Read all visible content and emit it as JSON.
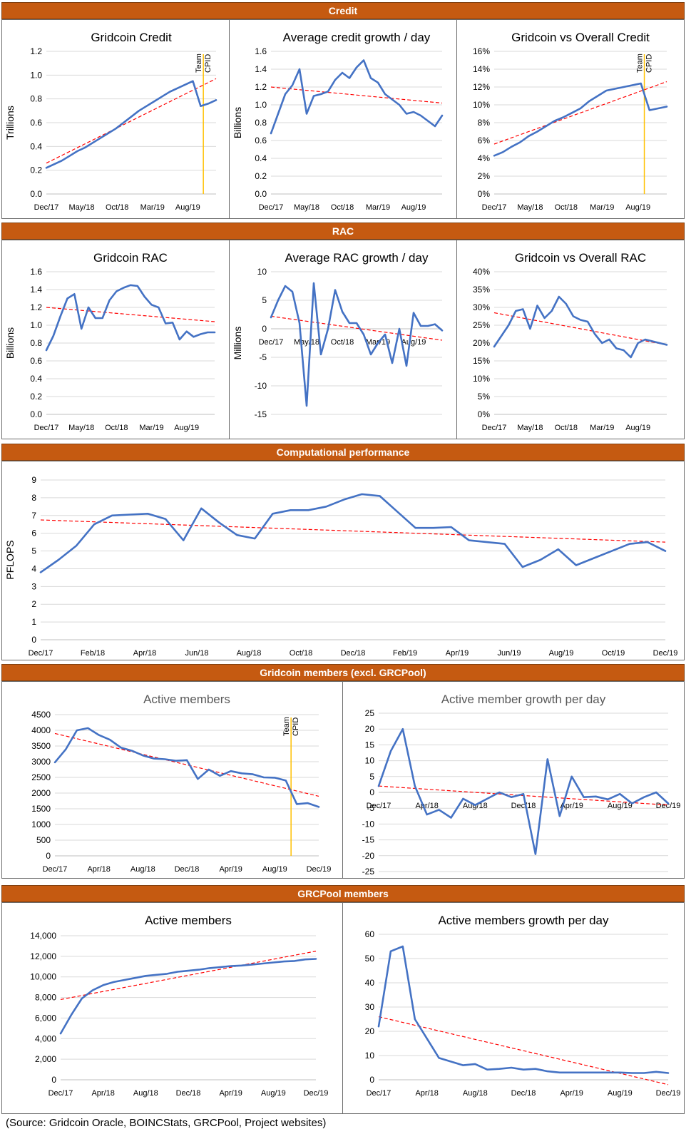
{
  "sections": {
    "credit": "Credit",
    "rac": "RAC",
    "perf": "Computational performance",
    "members": "Gridcoin members (excl. GRCPool)",
    "pool": "GRCPool members"
  },
  "source": "(Source: Gridcoin Oracle, BOINCStats, GRCPool, Project websites)",
  "colors": {
    "banner": "#c55a11",
    "line": "#4472c4",
    "trend": "#ff0000",
    "marker": "#ffc000"
  },
  "chart_data": [
    {
      "id": "c1",
      "type": "line",
      "title": "Gridcoin Credit",
      "ylabel": "Trillions",
      "ylim": [
        0,
        1.2
      ],
      "yticks": [
        "0.0",
        "0.2",
        "0.4",
        "0.6",
        "0.8",
        "1.0",
        "1.2"
      ],
      "xticks": [
        "Dec/17",
        "May/18",
        "Oct/18",
        "Mar/19",
        "Aug/19"
      ],
      "marker_labels": [
        "Team",
        "CPID"
      ],
      "values": [
        0.22,
        0.25,
        0.28,
        0.32,
        0.36,
        0.39,
        0.43,
        0.47,
        0.51,
        0.55,
        0.6,
        0.65,
        0.7,
        0.74,
        0.78,
        0.82,
        0.86,
        0.89,
        0.92,
        0.95,
        0.74,
        0.76,
        0.79
      ],
      "trend": [
        0.26,
        0.97
      ]
    },
    {
      "id": "c2",
      "type": "line",
      "title": "Average credit growth / day",
      "ylabel": "Billions",
      "ylim": [
        0,
        1.6
      ],
      "yticks": [
        "0.0",
        "0.2",
        "0.4",
        "0.6",
        "0.8",
        "1.0",
        "1.2",
        "1.4",
        "1.6"
      ],
      "xticks": [
        "Dec/17",
        "May/18",
        "Oct/18",
        "Mar/19",
        "Aug/19"
      ],
      "values": [
        0.68,
        0.9,
        1.12,
        1.22,
        1.4,
        0.9,
        1.1,
        1.12,
        1.15,
        1.28,
        1.36,
        1.3,
        1.42,
        1.5,
        1.3,
        1.25,
        1.12,
        1.06,
        1.0,
        0.9,
        0.92,
        0.88,
        0.82,
        0.76,
        0.88
      ],
      "trend": [
        1.2,
        1.02
      ]
    },
    {
      "id": "c3",
      "type": "line",
      "title": "Gridcoin vs Overall Credit",
      "ylabel": "",
      "ylim": [
        0,
        16
      ],
      "yticks": [
        "0%",
        "2%",
        "4%",
        "6%",
        "8%",
        "10%",
        "12%",
        "14%",
        "16%"
      ],
      "xticks": [
        "Dec/17",
        "May/18",
        "Oct/18",
        "Mar/19",
        "Aug/19"
      ],
      "marker_labels": [
        "Team",
        "CPID"
      ],
      "values": [
        4.3,
        4.7,
        5.3,
        5.8,
        6.5,
        7.0,
        7.6,
        8.2,
        8.6,
        9.1,
        9.6,
        10.4,
        11.0,
        11.6,
        11.8,
        12.0,
        12.2,
        12.4,
        9.4,
        9.6,
        9.8
      ],
      "trend": [
        5.6,
        12.6
      ]
    },
    {
      "id": "r1",
      "type": "line",
      "title": "Gridcoin RAC",
      "ylabel": "Billions",
      "ylim": [
        0,
        1.6
      ],
      "yticks": [
        "0.0",
        "0.2",
        "0.4",
        "0.6",
        "0.8",
        "1.0",
        "1.2",
        "1.4",
        "1.6"
      ],
      "xticks": [
        "Dec/17",
        "May/18",
        "Oct/18",
        "Mar/19",
        "Aug/19"
      ],
      "values": [
        0.72,
        0.88,
        1.1,
        1.3,
        1.35,
        0.96,
        1.2,
        1.08,
        1.08,
        1.28,
        1.38,
        1.42,
        1.45,
        1.44,
        1.32,
        1.23,
        1.2,
        1.02,
        1.03,
        0.84,
        0.93,
        0.87,
        0.9,
        0.92,
        0.92
      ],
      "trend": [
        1.2,
        1.04
      ]
    },
    {
      "id": "r2",
      "type": "line",
      "title": "Average RAC growth / day",
      "ylabel": "Millions",
      "ylim": [
        -15,
        10
      ],
      "yticks": [
        "-15",
        "-10",
        "-5",
        "0",
        "5",
        "10"
      ],
      "xticks": [
        "Dec/17",
        "May/18",
        "Oct/18",
        "Mar/19",
        "Aug/19"
      ],
      "values": [
        2,
        5,
        7.5,
        6.5,
        1,
        -13.5,
        8,
        -4.5,
        0,
        6.8,
        3,
        1,
        1,
        -1,
        -4.5,
        -2.5,
        -1,
        -6,
        0,
        -6.5,
        2.8,
        0.5,
        0.5,
        0.8,
        -0.3
      ],
      "trend": [
        2.2,
        -2.0
      ]
    },
    {
      "id": "r3",
      "type": "line",
      "title": "Gridcoin vs Overall RAC",
      "ylabel": "",
      "ylim": [
        0,
        40
      ],
      "yticks": [
        "0%",
        "5%",
        "10%",
        "15%",
        "20%",
        "25%",
        "30%",
        "35%",
        "40%"
      ],
      "xticks": [
        "Dec/17",
        "May/18",
        "Oct/18",
        "Mar/19",
        "Aug/19"
      ],
      "values": [
        19,
        22,
        25,
        29,
        29.5,
        24,
        30.5,
        27,
        29,
        33,
        31,
        27.5,
        26.5,
        26,
        22.5,
        20,
        21,
        18.5,
        18,
        16,
        20,
        21,
        20.5,
        20,
        19.5
      ],
      "trend": [
        28.5,
        19.5
      ]
    },
    {
      "id": "p1",
      "type": "line",
      "title": "",
      "ylabel": "PFLOPS",
      "ylim": [
        0,
        9
      ],
      "yticks": [
        "0",
        "1",
        "2",
        "3",
        "4",
        "5",
        "6",
        "7",
        "8",
        "9"
      ],
      "xticks": [
        "Dec/17",
        "Feb/18",
        "Apr/18",
        "Jun/18",
        "Aug/18",
        "Oct/18",
        "Dec/18",
        "Feb/19",
        "Apr/19",
        "Jun/19",
        "Aug/19",
        "Oct/19",
        "Dec/19"
      ],
      "values": [
        3.8,
        4.5,
        5.3,
        6.5,
        7.0,
        7.05,
        7.1,
        6.8,
        5.6,
        7.4,
        6.6,
        5.9,
        5.7,
        7.1,
        7.3,
        7.3,
        7.5,
        7.9,
        8.2,
        8.1,
        7.2,
        6.3,
        6.3,
        6.35,
        5.6,
        5.5,
        5.4,
        4.1,
        4.5,
        5.1,
        4.2,
        4.6,
        5.0,
        5.4,
        5.5,
        5.0
      ],
      "trend": [
        6.75,
        5.5
      ]
    },
    {
      "id": "m1",
      "type": "line",
      "title": "Active members",
      "ylabel": "",
      "ylim": [
        0,
        4500
      ],
      "yticks": [
        "0",
        "500",
        "1000",
        "1500",
        "2000",
        "2500",
        "3000",
        "3500",
        "4000",
        "4500"
      ],
      "xticks": [
        "Dec/17",
        "Apr/18",
        "Aug/18",
        "Dec/18",
        "Apr/19",
        "Aug/19",
        "Dec/19"
      ],
      "marker_labels": [
        "Team",
        "CPID"
      ],
      "values": [
        2980,
        3400,
        4000,
        4070,
        3850,
        3700,
        3450,
        3350,
        3200,
        3100,
        3080,
        3030,
        3050,
        2450,
        2750,
        2550,
        2700,
        2630,
        2600,
        2500,
        2490,
        2400,
        1650,
        1680,
        1560
      ],
      "trend": [
        3900,
        1900
      ]
    },
    {
      "id": "m2",
      "type": "line",
      "title": "Active member growth per day",
      "ylabel": "",
      "ylim": [
        -25,
        25
      ],
      "yticks": [
        "-25",
        "-20",
        "-15",
        "-10",
        "-5",
        "0",
        "5",
        "10",
        "15",
        "20",
        "25"
      ],
      "xticks": [
        "Dec/17",
        "Apr/18",
        "Aug/18",
        "Dec/18",
        "Apr/19",
        "Aug/19",
        "Dec/19"
      ],
      "values": [
        2,
        13,
        20,
        2,
        -7,
        -5.5,
        -8,
        -2,
        -4,
        -2,
        0,
        -1.5,
        -0.5,
        -19.5,
        10.5,
        -7.5,
        5,
        -1.5,
        -1.3,
        -2.2,
        -0.5,
        -3.5,
        -1.5,
        0,
        -3.5
      ],
      "trend": [
        2,
        -4
      ]
    },
    {
      "id": "g1",
      "type": "line",
      "title": "Active members",
      "ylabel": "",
      "ylim": [
        0,
        14000
      ],
      "yticks": [
        "0",
        "2,000",
        "4,000",
        "6,000",
        "8,000",
        "10,000",
        "12,000",
        "14,000"
      ],
      "xticks": [
        "Dec/17",
        "Apr/18",
        "Aug/18",
        "Dec/18",
        "Apr/19",
        "Aug/19",
        "Dec/19"
      ],
      "values": [
        4500,
        6300,
        7900,
        8700,
        9200,
        9500,
        9700,
        9900,
        10100,
        10200,
        10300,
        10500,
        10600,
        10700,
        10850,
        10950,
        11050,
        11100,
        11200,
        11300,
        11400,
        11500,
        11550,
        11700,
        11750
      ],
      "trend": [
        7800,
        12500
      ]
    },
    {
      "id": "g2",
      "type": "line",
      "title": "Active members  growth per day",
      "ylabel": "",
      "ylim": [
        0,
        60
      ],
      "yticks": [
        "0",
        "10",
        "20",
        "30",
        "40",
        "50",
        "60"
      ],
      "xticks": [
        "Dec/17",
        "Apr/18",
        "Aug/18",
        "Dec/18",
        "Apr/19",
        "Aug/19",
        "Dec/19"
      ],
      "values": [
        22,
        53,
        55,
        25,
        17,
        9,
        7.5,
        6,
        6.5,
        4.2,
        4.5,
        5,
        4.2,
        4.5,
        3.5,
        3,
        3,
        3,
        3,
        3,
        3,
        2.8,
        2.8,
        3.3,
        2.8
      ],
      "trend": [
        26,
        -2
      ]
    }
  ]
}
